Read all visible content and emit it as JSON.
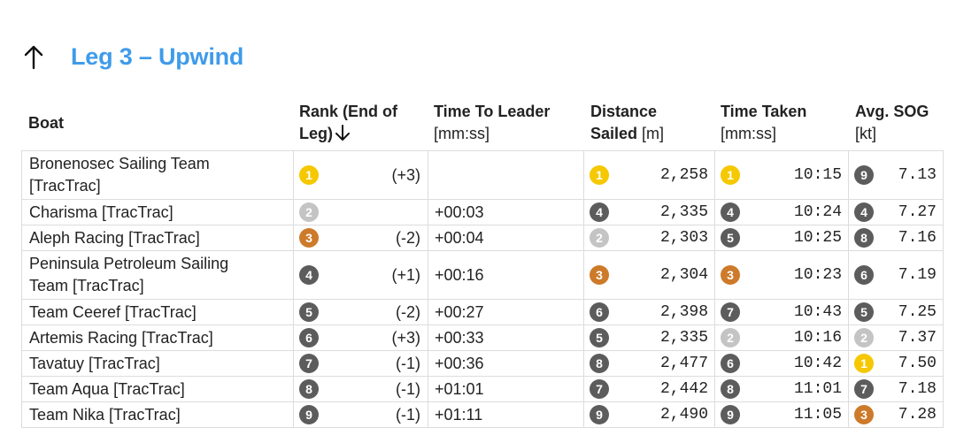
{
  "leg": {
    "title": "Leg 3 – Upwind",
    "direction_icon": "arrow-up-icon"
  },
  "columns": {
    "boat": "Boat",
    "rank_line1": "Rank (End of",
    "rank_line2": "Leg)",
    "leader_title": "Time To Leader",
    "leader_unit": "[mm:ss]",
    "distance_line1": "Distance",
    "distance_line2": "Sailed",
    "distance_unit": "[m]",
    "time_taken_title": "Time Taken",
    "time_taken_unit": "[mm:ss]",
    "sog_title": "Avg. SOG",
    "sog_unit": "[kt]",
    "sort_icon": "arrow-down-icon"
  },
  "badge_colors": {
    "1": "#f5c800",
    "2": "#c4c4c4",
    "3": "#cd7a2a",
    "other": "#5c5c5c"
  },
  "rows": [
    {
      "boat_line1": "Bronenosec Sailing Team",
      "boat_line2": "[TracTrac]",
      "rank": "1",
      "rank_change": "(+3)",
      "time_to_leader": "",
      "distance_rank": "1",
      "distance": "2,258",
      "time_rank": "1",
      "time_taken": "10:15",
      "sog_rank": "9",
      "sog": "7.13"
    },
    {
      "boat_line1": "Charisma [TracTrac]",
      "boat_line2": "",
      "rank": "2",
      "rank_change": "",
      "time_to_leader": "+00:03",
      "distance_rank": "4",
      "distance": "2,335",
      "time_rank": "4",
      "time_taken": "10:24",
      "sog_rank": "4",
      "sog": "7.27"
    },
    {
      "boat_line1": "Aleph Racing [TracTrac]",
      "boat_line2": "",
      "rank": "3",
      "rank_change": "(-2)",
      "time_to_leader": "+00:04",
      "distance_rank": "2",
      "distance": "2,303",
      "time_rank": "5",
      "time_taken": "10:25",
      "sog_rank": "8",
      "sog": "7.16"
    },
    {
      "boat_line1": "Peninsula Petroleum Sailing",
      "boat_line2": "Team [TracTrac]",
      "rank": "4",
      "rank_change": "(+1)",
      "time_to_leader": "+00:16",
      "distance_rank": "3",
      "distance": "2,304",
      "time_rank": "3",
      "time_taken": "10:23",
      "sog_rank": "6",
      "sog": "7.19"
    },
    {
      "boat_line1": "Team Ceeref [TracTrac]",
      "boat_line2": "",
      "rank": "5",
      "rank_change": "(-2)",
      "time_to_leader": "+00:27",
      "distance_rank": "6",
      "distance": "2,398",
      "time_rank": "7",
      "time_taken": "10:43",
      "sog_rank": "5",
      "sog": "7.25"
    },
    {
      "boat_line1": "Artemis Racing [TracTrac]",
      "boat_line2": "",
      "rank": "6",
      "rank_change": "(+3)",
      "time_to_leader": "+00:33",
      "distance_rank": "5",
      "distance": "2,335",
      "time_rank": "2",
      "time_taken": "10:16",
      "sog_rank": "2",
      "sog": "7.37"
    },
    {
      "boat_line1": "Tavatuy [TracTrac]",
      "boat_line2": "",
      "rank": "7",
      "rank_change": "(-1)",
      "time_to_leader": "+00:36",
      "distance_rank": "8",
      "distance": "2,477",
      "time_rank": "6",
      "time_taken": "10:42",
      "sog_rank": "1",
      "sog": "7.50"
    },
    {
      "boat_line1": "Team Aqua [TracTrac]",
      "boat_line2": "",
      "rank": "8",
      "rank_change": "(-1)",
      "time_to_leader": "+01:01",
      "distance_rank": "7",
      "distance": "2,442",
      "time_rank": "8",
      "time_taken": "11:01",
      "sog_rank": "7",
      "sog": "7.18"
    },
    {
      "boat_line1": "Team Nika [TracTrac]",
      "boat_line2": "",
      "rank": "9",
      "rank_change": "(-1)",
      "time_to_leader": "+01:11",
      "distance_rank": "9",
      "distance": "2,490",
      "time_rank": "9",
      "time_taken": "11:05",
      "sog_rank": "3",
      "sog": "7.28"
    }
  ]
}
